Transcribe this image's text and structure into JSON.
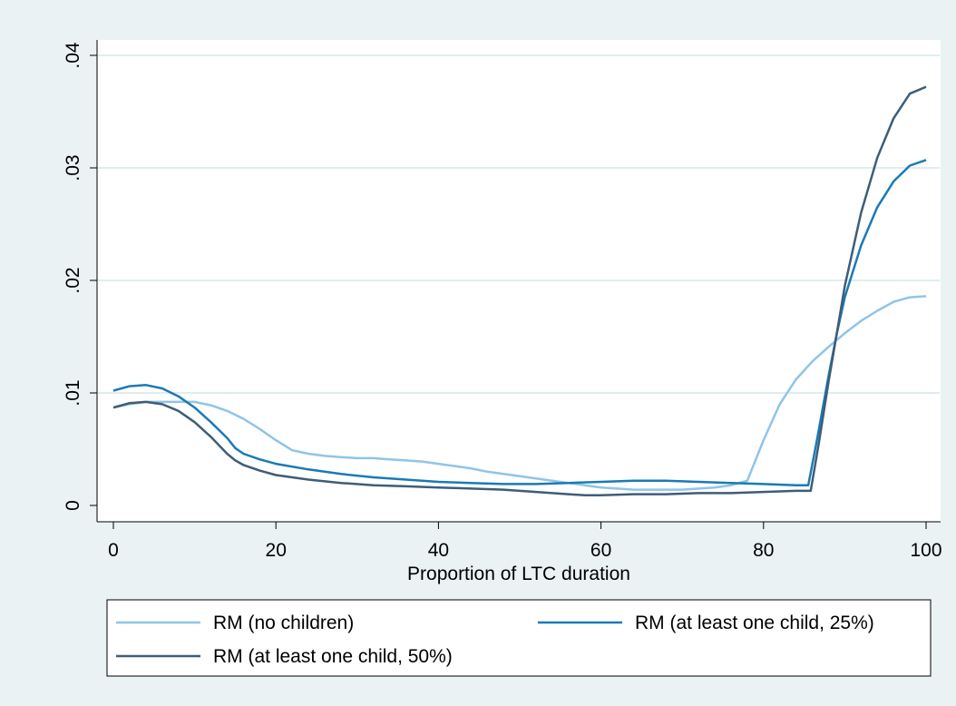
{
  "chart_data": {
    "type": "line",
    "title": "",
    "xlabel": "Proportion of LTC duration",
    "ylabel": "",
    "xlim": [
      0,
      100
    ],
    "ylim": [
      0,
      0.04
    ],
    "x_ticks": [
      0,
      20,
      40,
      60,
      80,
      100
    ],
    "x_tick_labels": [
      "0",
      "20",
      "40",
      "60",
      "80",
      "100"
    ],
    "y_ticks": [
      0,
      0.01,
      0.02,
      0.03,
      0.04
    ],
    "y_tick_labels": [
      "0",
      ".01",
      ".02",
      ".03",
      ".04"
    ],
    "grid": "horizontal",
    "legend_position": "bottom",
    "series": [
      {
        "name": "RM (no children)",
        "color": "#90c4e8",
        "x": [
          0,
          2,
          4,
          6,
          8,
          10,
          12,
          14,
          16,
          18,
          20,
          22,
          24,
          26,
          28,
          30,
          32,
          34,
          36,
          38,
          40,
          42,
          44,
          46,
          48,
          50,
          52,
          54,
          56,
          58,
          60,
          62,
          64,
          66,
          68,
          70,
          72,
          74,
          76,
          78,
          80,
          82,
          84,
          86,
          88,
          90,
          92,
          94,
          96,
          98,
          100
        ],
        "y": [
          0.0087,
          0.009,
          0.0092,
          0.0092,
          0.0092,
          0.0092,
          0.0089,
          0.0084,
          0.0077,
          0.0068,
          0.0058,
          0.0049,
          0.0046,
          0.0044,
          0.0043,
          0.0042,
          0.0042,
          0.0041,
          0.004,
          0.0039,
          0.0037,
          0.0035,
          0.0033,
          0.003,
          0.0028,
          0.0026,
          0.0024,
          0.0022,
          0.002,
          0.0018,
          0.0016,
          0.0015,
          0.0014,
          0.0014,
          0.0014,
          0.0014,
          0.0015,
          0.0016,
          0.0018,
          0.0022,
          0.0058,
          0.009,
          0.0112,
          0.0128,
          0.0141,
          0.0153,
          0.0164,
          0.0173,
          0.0181,
          0.0185,
          0.0186
        ]
      },
      {
        "name": "RM (at least one child, 25%)",
        "color": "#1a7ab5",
        "x": [
          0,
          2,
          4,
          6,
          8,
          10,
          12,
          14,
          15,
          16,
          18,
          20,
          24,
          28,
          32,
          36,
          40,
          44,
          48,
          52,
          56,
          60,
          64,
          68,
          72,
          76,
          80,
          84,
          85.5,
          86.5,
          88,
          89,
          90,
          92,
          94,
          96,
          98,
          100
        ],
        "y": [
          0.0102,
          0.0106,
          0.0107,
          0.0104,
          0.0097,
          0.0087,
          0.0074,
          0.006,
          0.0051,
          0.0046,
          0.0041,
          0.0037,
          0.0032,
          0.0028,
          0.0025,
          0.0023,
          0.0021,
          0.002,
          0.0019,
          0.0019,
          0.002,
          0.0021,
          0.0022,
          0.0022,
          0.0021,
          0.002,
          0.0019,
          0.0018,
          0.0018,
          0.0055,
          0.0115,
          0.0152,
          0.0185,
          0.0231,
          0.0265,
          0.0288,
          0.0302,
          0.0307
        ]
      },
      {
        "name": "RM (at least one child, 50%)",
        "color": "#3e5d77",
        "x": [
          0,
          2,
          4,
          6,
          8,
          10,
          12,
          14,
          15,
          16,
          18,
          20,
          24,
          28,
          32,
          36,
          40,
          44,
          48,
          52,
          56,
          58,
          60,
          64,
          68,
          72,
          76,
          80,
          84,
          85.8,
          86.8,
          88,
          89,
          90,
          92,
          94,
          96,
          98,
          100
        ],
        "y": [
          0.0087,
          0.0091,
          0.0092,
          0.009,
          0.0084,
          0.0074,
          0.0061,
          0.0046,
          0.004,
          0.0036,
          0.0031,
          0.0027,
          0.0023,
          0.002,
          0.0018,
          0.0017,
          0.0016,
          0.0015,
          0.0014,
          0.0012,
          0.001,
          0.0009,
          0.0009,
          0.001,
          0.001,
          0.0011,
          0.0011,
          0.0012,
          0.0013,
          0.0013,
          0.0055,
          0.011,
          0.0152,
          0.0195,
          0.026,
          0.0309,
          0.0344,
          0.0366,
          0.0372
        ]
      }
    ]
  }
}
